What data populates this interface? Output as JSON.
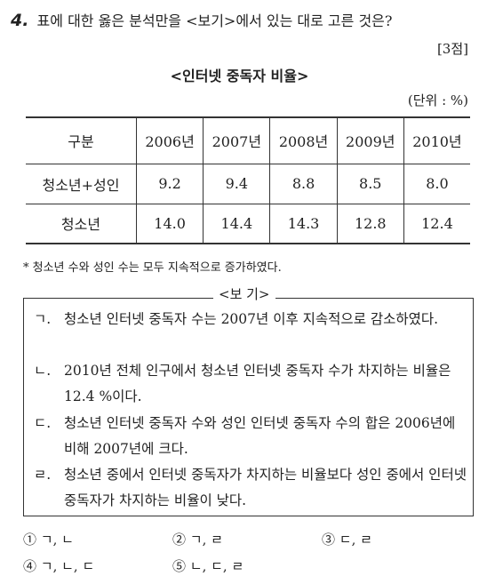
{
  "question": {
    "number": "4.",
    "text": "표에 대한 옳은 분석만을 <보기>에서 있는 대로 고른 것은?",
    "points": "[3점]"
  },
  "table": {
    "title": "<인터넷 중독자 비율>",
    "unit": "(단위 : %)",
    "headers": [
      "구분",
      "2006년",
      "2007년",
      "2008년",
      "2009년",
      "2010년"
    ],
    "rows": [
      [
        "청소년+성인",
        "9.2",
        "9.4",
        "8.8",
        "8.5",
        "8.0"
      ],
      [
        "청소년",
        "14.0",
        "14.4",
        "14.3",
        "12.8",
        "12.4"
      ]
    ],
    "footnote": "* 청소년 수와 성인 수는 모두 지속적으로 증가하였다."
  },
  "box": {
    "title": "<보 기>",
    "items": [
      {
        "mark": "ㄱ.",
        "text": "청소년 인터넷 중독자 수는 2007년 이후 지속적으로 감소하였다."
      },
      {
        "mark": "ㄴ.",
        "text": "2010년 전체 인구에서 청소년 인터넷 중독자 수가 차지하는 비율은 12.4 %이다."
      },
      {
        "mark": "ㄷ.",
        "text": "청소년 인터넷 중독자 수와 성인 인터넷 중독자 수의 합은 2006년에 비해 2007년에 크다."
      },
      {
        "mark": "ㄹ.",
        "text": "청소년 중에서 인터넷 중독자가 차지하는 비율보다 성인 중에서 인터넷 중독자가 차지하는 비율이 낮다."
      }
    ]
  },
  "choices": [
    "① ㄱ, ㄴ",
    "② ㄱ, ㄹ",
    "③ ㄷ, ㄹ",
    "④ ㄱ, ㄴ, ㄷ",
    "⑤ ㄴ, ㄷ, ㄹ"
  ]
}
